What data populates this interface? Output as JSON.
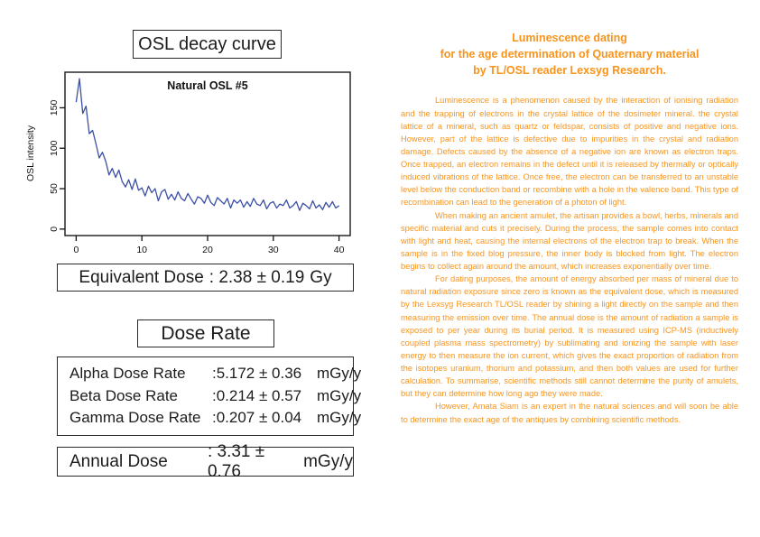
{
  "left": {
    "decay_title": "OSL decay curve",
    "equivalent_dose": {
      "label": "Equivalent Dose",
      "value": ": 2.38 ± 0.19",
      "unit": "Gy"
    },
    "dose_rate_title": "Dose Rate",
    "dose_rates": [
      {
        "label": "Alpha Dose Rate",
        "value": ":5.172 ± 0.36",
        "unit": "mGy/y"
      },
      {
        "label": "Beta Dose Rate",
        "value": ":0.214 ± 0.57",
        "unit": "mGy/y"
      },
      {
        "label": "Gamma Dose Rate",
        "value": ":0.207 ± 0.04",
        "unit": "mGy/y"
      }
    ],
    "annual_dose": {
      "label": "Annual Dose",
      "value": ": 3.31 ± 0.76",
      "unit": "mGy/y"
    }
  },
  "chart_data": {
    "type": "line",
    "title": "Natural OSL #5",
    "xlabel": "",
    "ylabel": "OSL intensity",
    "x_ticks": [
      0,
      10,
      20,
      30,
      40
    ],
    "y_ticks": [
      0,
      50,
      100,
      150
    ],
    "xlim": [
      -1.7,
      41.7
    ],
    "ylim": [
      -8,
      194
    ],
    "x_start": 0,
    "x_step": 0.5,
    "grid": false,
    "legend": "none",
    "series": [
      {
        "name": "Natural OSL #5",
        "color": "#3a4fa5",
        "values": [
          157,
          186,
          143,
          152,
          118,
          122,
          106,
          88,
          95,
          84,
          67,
          75,
          64,
          73,
          59,
          52,
          61,
          49,
          62,
          48,
          51,
          41,
          53,
          45,
          50,
          35,
          46,
          49,
          37,
          43,
          36,
          46,
          38,
          35,
          44,
          37,
          31,
          40,
          38,
          32,
          42,
          33,
          29,
          39,
          35,
          31,
          38,
          26,
          36,
          32,
          36,
          27,
          34,
          28,
          38,
          31,
          29,
          36,
          25,
          32,
          34,
          26,
          31,
          29,
          36,
          26,
          29,
          34,
          23,
          32,
          29,
          25,
          35,
          26,
          30,
          24,
          33,
          27,
          34,
          26,
          29
        ]
      }
    ]
  },
  "right": {
    "title_lines": [
      "Luminescence dating",
      "for the age determination of Quaternary material",
      "by TL/OSL reader Lexsyg Research."
    ],
    "paragraphs": [
      "Luminescence is a phenomenon caused by the interaction of ionising radiation and the trapping of electrons in the crystal lattice of the dosimeter mineral. the crystal lattice of a mineral, such as quartz or feldspar, consists of positive and negative ions. However, part of the lattice is defective due to impurities in the crystal and radiation damage. Defects caused by the absence of a negative ion are known as electron traps. Once trapped, an electron remains in the defect until it is released by thermally or optically induced vibrations of the lattice. Once free, the electron can be transferred to an unstable level below the conduction band or recombine with a hole in the valence band. This type of recombination can lead to the generation of a photon of light.",
      "When making an ancient amulet, the artisan provides a bowl, herbs, minerals and specific material and cuts it precisely. During the process, the sample comes into contact with light and heat, causing the internal electrons of the electron trap to break. When the sample is in the fixed blog pressure, the inner body is blocked from light. The electron begins to collect again around the amount, which increases exponentially over time.",
      "For dating purposes, the amount of energy absorbed per mass of mineral due to natural radiation exposure since zero is known as the equivalent dose, which is measured by the Lexsyg Research TL/OSL reader by shining a light directly on the sample and then measuring the emission over time. The annual dose is the amount of radiation a sample is exposed to per year during its burial period. It is measured using ICP-MS (inductively coupled plasma mass spectrometry) by sublimating and ionizing the sample with laser energy to then measure the ion current, which gives the exact proportion of radiation from the isotopes uranium, thorium and potassium, and then both values are used for further calculation. To summarise, scientific methods still cannot determine the purity of amulets, but they can determine how long ago they were made.",
      "However, Amata Siam is an expert in the natural sciences and will soon be able to determine the exact age of the antiques by combining scientific methods."
    ]
  },
  "colors": {
    "accent_orange": "#f7941d",
    "curve_blue": "#3a4fa5",
    "text_black": "#1c1c1c"
  }
}
